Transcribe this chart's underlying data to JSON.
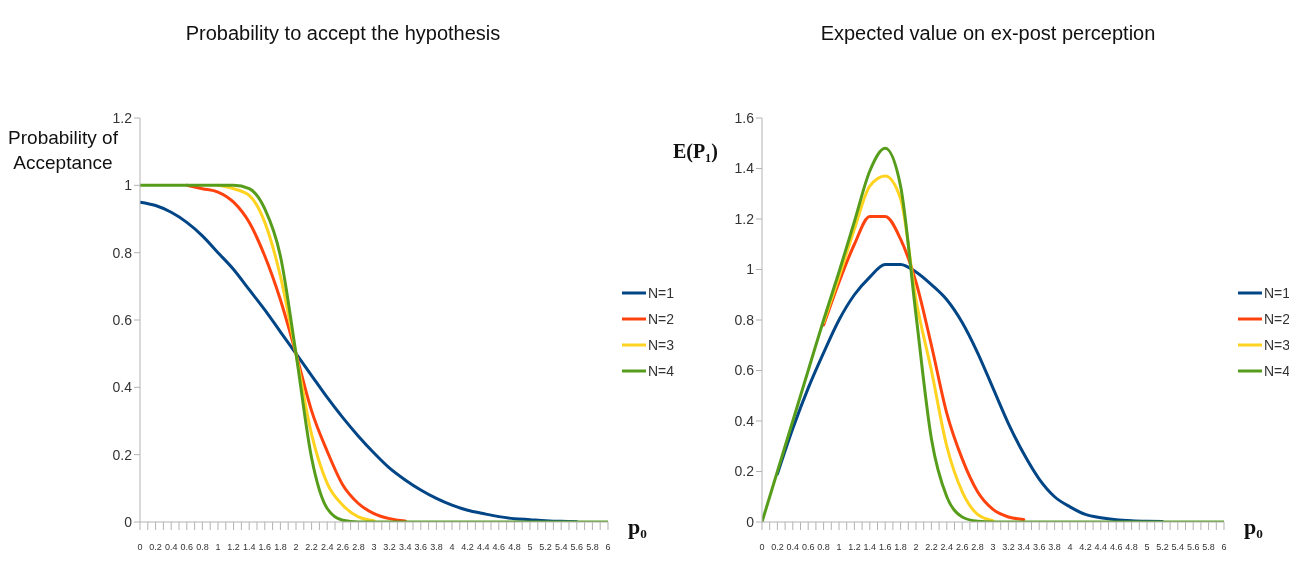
{
  "chart_data": [
    {
      "type": "line",
      "title": "Probability to accept the hypothesis",
      "ylabel": "Probability of Acceptance",
      "xlabel": "p₀",
      "x": [
        0,
        0.2,
        0.4,
        0.6,
        0.8,
        1,
        1.2,
        1.4,
        1.6,
        1.8,
        2,
        2.2,
        2.4,
        2.6,
        2.8,
        3,
        3.2,
        3.4,
        3.6,
        3.8,
        4,
        4.2,
        4.4,
        4.6,
        4.8,
        5,
        5.2,
        5.4,
        5.6,
        5.8,
        6
      ],
      "series": [
        {
          "name": "N=1",
          "color": "#004586",
          "values": [
            0.95,
            0.94,
            0.92,
            0.89,
            0.85,
            0.8,
            0.75,
            0.69,
            0.63,
            0.565,
            0.5,
            0.435,
            0.37,
            0.31,
            0.255,
            0.205,
            0.16,
            0.125,
            0.095,
            0.07,
            0.05,
            0.035,
            0.025,
            0.016,
            0.01,
            0.007,
            0.004,
            0.002,
            0.001,
            null,
            null
          ]
        },
        {
          "name": "N=2",
          "color": "#ff420e",
          "values": [
            null,
            null,
            null,
            1,
            0.99,
            0.98,
            0.95,
            0.89,
            0.79,
            0.66,
            0.5,
            0.33,
            0.21,
            0.11,
            0.055,
            0.025,
            0.01,
            0.003,
            null,
            null,
            null,
            null,
            null,
            null,
            null,
            null,
            null,
            null,
            null,
            null,
            null
          ]
        },
        {
          "name": "N=3",
          "color": "#ffd320",
          "values": [
            null,
            null,
            null,
            null,
            null,
            1,
            0.99,
            0.97,
            0.89,
            0.73,
            0.5,
            0.26,
            0.115,
            0.05,
            0.015,
            0.004,
            null,
            null,
            null,
            null,
            null,
            null,
            null,
            null,
            null,
            null,
            null,
            null,
            null,
            null,
            null
          ]
        },
        {
          "name": "N=4",
          "color": "#579d1c",
          "values": [
            1,
            1,
            1,
            1,
            1,
            1,
            1,
            0.99,
            0.93,
            0.79,
            0.5,
            0.19,
            0.04,
            0.005,
            0,
            0,
            0,
            0,
            0,
            0,
            0,
            0,
            0,
            0,
            0,
            0,
            0,
            0,
            0,
            0,
            0
          ]
        }
      ],
      "xlim": [
        0,
        6
      ],
      "xticks": [
        0,
        {
          "value": 0.1,
          "label": null
        },
        0.2,
        {
          "value": 0.3,
          "label": null
        },
        0.4,
        {
          "value": 0.5,
          "label": null
        },
        0.6,
        {
          "value": 0.7,
          "label": null
        },
        0.8,
        {
          "value": 0.9,
          "label": null
        },
        1,
        {
          "value": 1.1,
          "label": null
        },
        1.2,
        {
          "value": 1.3,
          "label": null
        },
        1.4,
        {
          "value": 1.5,
          "label": null
        },
        1.6,
        {
          "value": 1.7,
          "label": null
        },
        1.8,
        {
          "value": 1.9,
          "label": null
        },
        2,
        {
          "value": 2.1,
          "label": null
        },
        2.2,
        {
          "value": 2.3,
          "label": null
        },
        2.4,
        {
          "value": 2.5,
          "label": null
        },
        2.6,
        {
          "value": 2.7,
          "label": null
        },
        2.8,
        {
          "value": 2.9,
          "label": null
        },
        3,
        {
          "value": 3.1,
          "label": null
        },
        3.2,
        {
          "value": 3.3,
          "label": null
        },
        3.4,
        {
          "value": 3.5,
          "label": null
        },
        3.6,
        {
          "value": 3.7,
          "label": null
        },
        3.8,
        {
          "value": 3.9,
          "label": null
        },
        4,
        {
          "value": 4.1,
          "label": null
        },
        4.2,
        {
          "value": 4.3,
          "label": null
        },
        4.4,
        {
          "value": 4.5,
          "label": null
        },
        4.6,
        {
          "value": 4.7,
          "label": null
        },
        4.8,
        {
          "value": 4.9,
          "label": null
        },
        5,
        {
          "value": 5.1,
          "label": null
        },
        5.2,
        {
          "value": 5.3,
          "label": null
        },
        5.4,
        {
          "value": 5.5,
          "label": null
        },
        5.6,
        {
          "value": 5.7,
          "label": null
        },
        5.8,
        {
          "value": 5.9,
          "label": null
        },
        6
      ],
      "ylim": [
        0,
        1.2
      ],
      "yticks": [
        0,
        0.2,
        0.4,
        0.6,
        0.8,
        1,
        1.2
      ],
      "legend": "right"
    },
    {
      "type": "line",
      "title": "Expected value on ex-post perception",
      "ylabel": "E(P₁)",
      "xlabel": "p₀",
      "x": [
        0,
        0.2,
        0.4,
        0.6,
        0.8,
        1,
        1.2,
        1.4,
        1.6,
        1.8,
        2,
        2.2,
        2.4,
        2.6,
        2.8,
        3,
        3.2,
        3.4,
        3.6,
        3.8,
        4,
        4.2,
        4.4,
        4.6,
        4.8,
        5,
        5.2,
        5.4,
        5.6,
        5.8,
        6
      ],
      "series": [
        {
          "name": "N=1",
          "color": "#004586",
          "values": [
            null,
            0.19,
            0.37,
            0.53,
            0.67,
            0.8,
            0.9,
            0.97,
            1.02,
            1.02,
            0.99,
            0.94,
            0.88,
            0.79,
            0.67,
            0.53,
            0.39,
            0.27,
            0.17,
            0.1,
            0.06,
            0.03,
            0.017,
            0.009,
            0.005,
            0.003,
            0.002,
            null,
            null,
            null,
            null
          ]
        },
        {
          "name": "N=2",
          "color": "#ff420e",
          "values": [
            null,
            null,
            null,
            null,
            0.78,
            0.95,
            1.1,
            1.21,
            1.21,
            1.12,
            0.95,
            0.7,
            0.43,
            0.25,
            0.12,
            0.05,
            0.02,
            0.01,
            null,
            null,
            null,
            null,
            null,
            null,
            null,
            null,
            null,
            null,
            null,
            null,
            null
          ]
        },
        {
          "name": "N=3",
          "color": "#ffd320",
          "values": [
            null,
            null,
            null,
            null,
            0.79,
            0.97,
            1.16,
            1.33,
            1.37,
            1.28,
            0.88,
            0.6,
            0.3,
            0.12,
            0.03,
            0.005,
            null,
            null,
            null,
            null,
            null,
            null,
            null,
            null,
            null,
            null,
            null,
            null,
            null,
            null,
            null
          ]
        },
        {
          "name": "N=4",
          "color": "#579d1c",
          "values": [
            0,
            0.2,
            0.4,
            0.6,
            0.8,
            0.99,
            1.19,
            1.39,
            1.48,
            1.33,
            0.82,
            0.33,
            0.1,
            0.02,
            0.003,
            0,
            0,
            0,
            0,
            0,
            0,
            0,
            0,
            0,
            0,
            0,
            0,
            0,
            0,
            0,
            0
          ]
        }
      ],
      "xlim": [
        0,
        6
      ],
      "xticks": [
        0,
        {
          "value": 0.1,
          "label": null
        },
        0.2,
        {
          "value": 0.3,
          "label": null
        },
        0.4,
        {
          "value": 0.5,
          "label": null
        },
        0.6,
        {
          "value": 0.7,
          "label": null
        },
        0.8,
        {
          "value": 0.9,
          "label": null
        },
        1,
        {
          "value": 1.1,
          "label": null
        },
        1.2,
        {
          "value": 1.3,
          "label": null
        },
        1.4,
        {
          "value": 1.5,
          "label": null
        },
        1.6,
        {
          "value": 1.7,
          "label": null
        },
        1.8,
        {
          "value": 1.9,
          "label": null
        },
        2,
        {
          "value": 2.1,
          "label": null
        },
        2.2,
        {
          "value": 2.3,
          "label": null
        },
        2.4,
        {
          "value": 2.5,
          "label": null
        },
        2.6,
        {
          "value": 2.7,
          "label": null
        },
        2.8,
        {
          "value": 2.9,
          "label": null
        },
        3,
        {
          "value": 3.1,
          "label": null
        },
        3.2,
        {
          "value": 3.3,
          "label": null
        },
        3.4,
        {
          "value": 3.5,
          "label": null
        },
        3.6,
        {
          "value": 3.7,
          "label": null
        },
        3.8,
        {
          "value": 3.9,
          "label": null
        },
        4,
        {
          "value": 4.1,
          "label": null
        },
        4.2,
        {
          "value": 4.3,
          "label": null
        },
        4.4,
        {
          "value": 4.5,
          "label": null
        },
        4.6,
        {
          "value": 4.7,
          "label": null
        },
        4.8,
        {
          "value": 4.9,
          "label": null
        },
        5,
        {
          "value": 5.1,
          "label": null
        },
        5.2,
        {
          "value": 5.3,
          "label": null
        },
        5.4,
        {
          "value": 5.5,
          "label": null
        },
        5.6,
        {
          "value": 5.7,
          "label": null
        },
        5.8,
        {
          "value": 5.9,
          "label": null
        },
        6
      ],
      "ylim": [
        0,
        1.6
      ],
      "yticks": [
        0,
        0.2,
        0.4,
        0.6,
        0.8,
        1,
        1.2,
        1.4,
        1.6
      ],
      "legend": "right"
    }
  ]
}
